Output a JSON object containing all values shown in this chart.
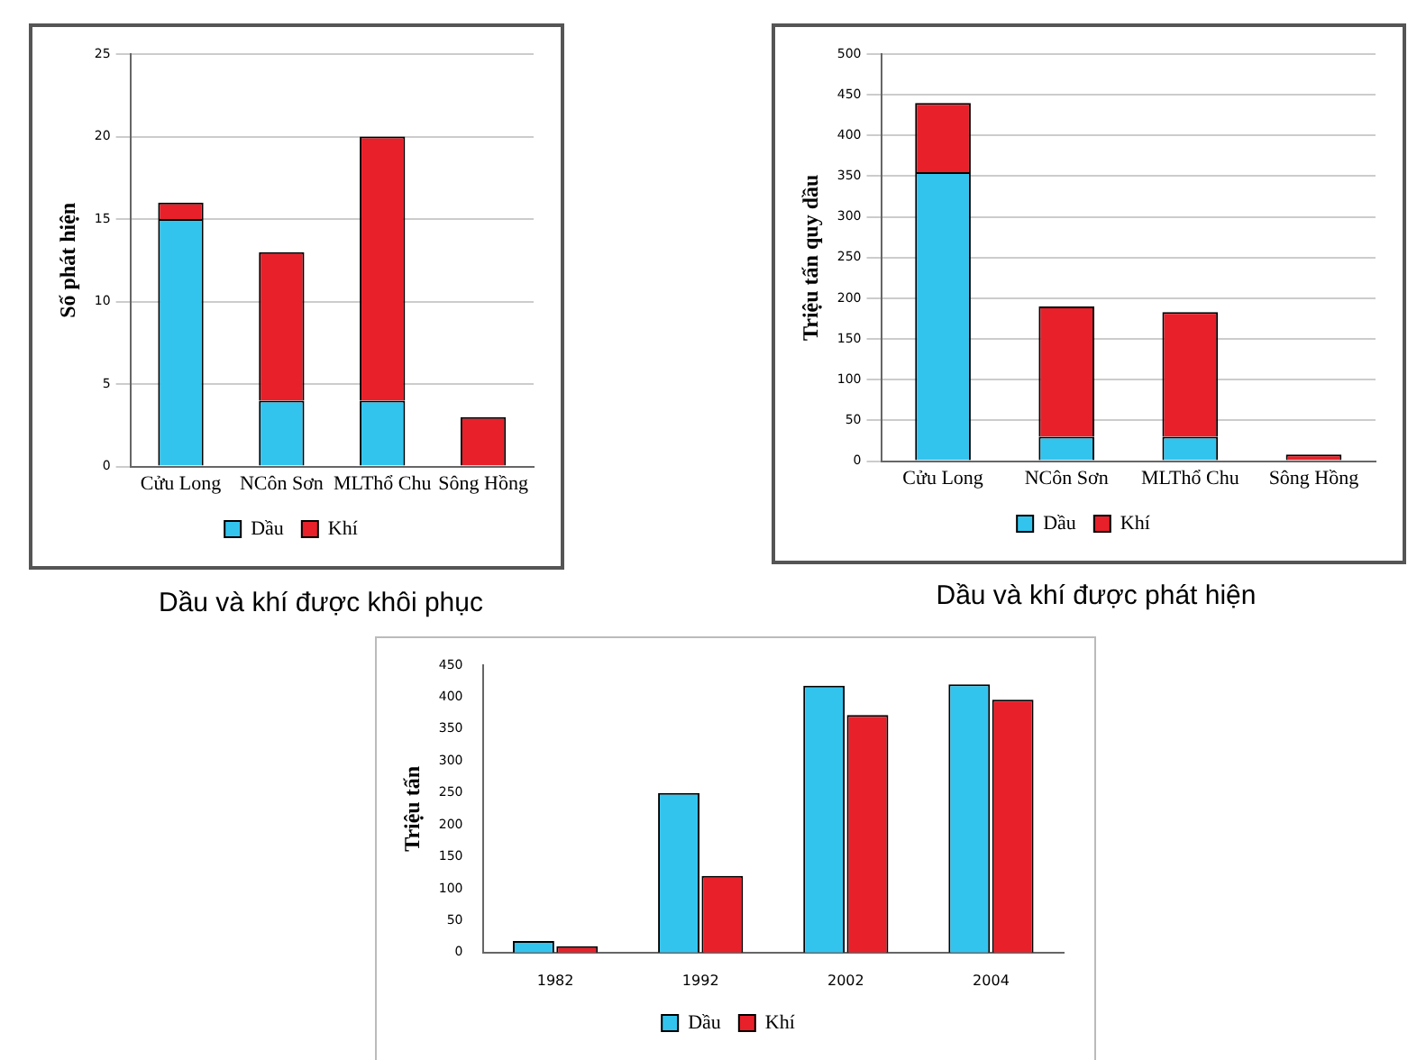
{
  "chart_data": [
    {
      "type": "bar",
      "ylabel": "Số phát hiện",
      "categories": [
        "Cửu Long",
        "NCôn Sơn",
        "MLThổ Chu",
        "Sông Hồng"
      ],
      "stacked": true,
      "series": [
        {
          "name": "Dầu",
          "color": "#33c4ee",
          "values": [
            15,
            4,
            4,
            0
          ]
        },
        {
          "name": "Khí",
          "color": "#e8202a",
          "values": [
            1,
            9,
            16,
            3
          ]
        }
      ],
      "ylim": [
        0,
        25
      ],
      "yticks": [
        0,
        5,
        10,
        15,
        20,
        25
      ],
      "grid": "y",
      "legend": "bottom",
      "annotations": [
        "Dầu và khí được khôi phục"
      ]
    },
    {
      "type": "bar",
      "ylabel": "Triệu tấn quy dầu",
      "categories": [
        "Cửu Long",
        "NCôn Sơn",
        "MLThổ Chu",
        "Sông Hồng"
      ],
      "stacked": true,
      "series": [
        {
          "name": "Dầu",
          "color": "#33c4ee",
          "values": [
            355,
            30,
            30,
            0
          ]
        },
        {
          "name": "Khí",
          "color": "#e8202a",
          "values": [
            85,
            160,
            153,
            8
          ]
        }
      ],
      "ylim": [
        0,
        500
      ],
      "yticks": [
        0,
        50,
        100,
        150,
        200,
        250,
        300,
        350,
        400,
        450,
        500
      ],
      "grid": "y",
      "legend": "bottom",
      "annotations": [
        "Dầu và khí được phát hiện"
      ]
    },
    {
      "type": "bar",
      "ylabel": "Triệu tấn",
      "categories": [
        "1982",
        "1992",
        "2002",
        "2004"
      ],
      "series": [
        {
          "name": "Dầu",
          "color": "#33c4ee",
          "values": [
            18,
            250,
            418,
            420
          ]
        },
        {
          "name": "Khí",
          "color": "#e8202a",
          "values": [
            10,
            120,
            372,
            396
          ]
        }
      ],
      "ylim": [
        0,
        450
      ],
      "yticks": [
        0,
        50,
        100,
        150,
        200,
        250,
        300,
        350,
        400,
        450
      ],
      "legend": "bottom"
    }
  ]
}
